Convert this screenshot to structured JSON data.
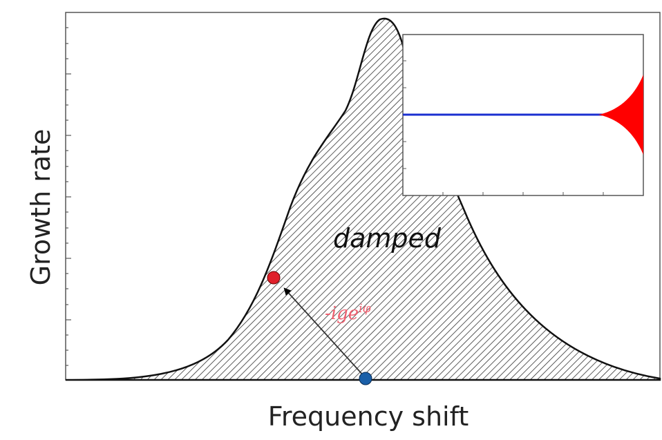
{
  "axes": {
    "x_label": "Frequency shift",
    "y_label": "Growth rate"
  },
  "region_label": "damped",
  "annotation": {
    "base": "-ige",
    "superscript": "iφ"
  }
}
